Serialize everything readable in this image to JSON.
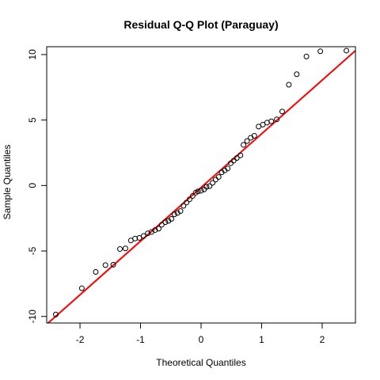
{
  "chart_data": {
    "type": "scatter",
    "title": "Residual Q-Q Plot (Paraguay)",
    "xlabel": "Theoretical Quantiles",
    "ylabel": "Sample Quantiles",
    "xlim": [
      -2.55,
      2.55
    ],
    "ylim": [
      -10.5,
      10.6
    ],
    "x_ticks": [
      -2,
      -1,
      0,
      1,
      2
    ],
    "y_ticks": [
      -10,
      -5,
      0,
      5,
      10
    ],
    "grid": false,
    "colors": {
      "points": "#000000",
      "line": "#ff0000"
    },
    "reference_line": {
      "x": [
        -2.55,
        2.55
      ],
      "y": [
        -10.6,
        10.3
      ]
    },
    "points": [
      [
        -2.4,
        -9.85
      ],
      [
        -1.97,
        -7.85
      ],
      [
        -1.74,
        -6.6
      ],
      [
        -1.58,
        -6.08
      ],
      [
        -1.45,
        -6.05
      ],
      [
        -1.34,
        -4.85
      ],
      [
        -1.25,
        -4.8
      ],
      [
        -1.16,
        -4.2
      ],
      [
        -1.09,
        -4.05
      ],
      [
        -1.02,
        -4.0
      ],
      [
        -0.95,
        -3.85
      ],
      [
        -0.88,
        -3.65
      ],
      [
        -0.82,
        -3.55
      ],
      [
        -0.76,
        -3.4
      ],
      [
        -0.7,
        -3.3
      ],
      [
        -0.65,
        -3.0
      ],
      [
        -0.59,
        -2.8
      ],
      [
        -0.54,
        -2.7
      ],
      [
        -0.49,
        -2.55
      ],
      [
        -0.44,
        -2.2
      ],
      [
        -0.39,
        -2.1
      ],
      [
        -0.34,
        -1.95
      ],
      [
        -0.29,
        -1.55
      ],
      [
        -0.24,
        -1.3
      ],
      [
        -0.19,
        -1.05
      ],
      [
        -0.14,
        -0.8
      ],
      [
        -0.09,
        -0.55
      ],
      [
        -0.05,
        -0.45
      ],
      [
        0.0,
        -0.4
      ],
      [
        0.05,
        -0.3
      ],
      [
        0.09,
        -0.1
      ],
      [
        0.14,
        -0.05
      ],
      [
        0.19,
        0.2
      ],
      [
        0.24,
        0.45
      ],
      [
        0.29,
        0.65
      ],
      [
        0.34,
        1.0
      ],
      [
        0.39,
        1.15
      ],
      [
        0.44,
        1.3
      ],
      [
        0.49,
        1.7
      ],
      [
        0.54,
        1.9
      ],
      [
        0.59,
        2.1
      ],
      [
        0.65,
        2.3
      ],
      [
        0.7,
        3.1
      ],
      [
        0.76,
        3.4
      ],
      [
        0.82,
        3.65
      ],
      [
        0.88,
        3.8
      ],
      [
        0.95,
        4.5
      ],
      [
        1.02,
        4.65
      ],
      [
        1.09,
        4.8
      ],
      [
        1.16,
        4.9
      ],
      [
        1.25,
        5.05
      ],
      [
        1.34,
        5.65
      ],
      [
        1.45,
        7.7
      ],
      [
        1.58,
        8.5
      ],
      [
        1.74,
        9.85
      ],
      [
        1.97,
        10.25
      ],
      [
        2.4,
        10.3
      ]
    ]
  }
}
